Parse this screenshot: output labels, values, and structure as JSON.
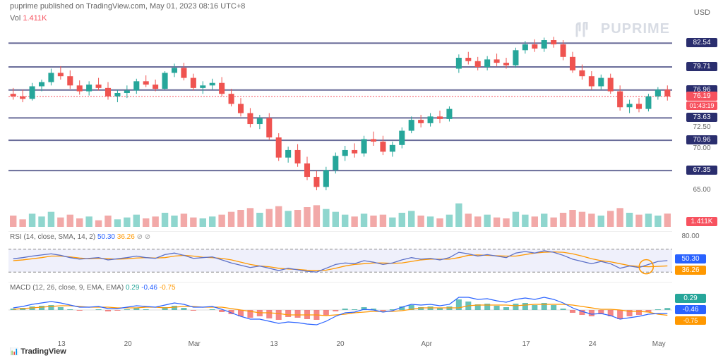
{
  "header": {
    "publisher": "puprime",
    "published_on": "published on TradingView.com,",
    "date": "May 01, 2023 08:16 UTC+8"
  },
  "volume": {
    "label": "Vol",
    "value": "1.411K",
    "color": "#f7525f"
  },
  "watermark": {
    "text": "PUPRIME",
    "color": "#d8dce4"
  },
  "currency": "USD",
  "price_chart": {
    "type": "candlestick",
    "y_min": 64,
    "y_max": 85,
    "horizontal_lines": [
      {
        "value": 82.54,
        "color": "#2a2e6e"
      },
      {
        "value": 79.71,
        "color": "#2a2e6e"
      },
      {
        "value": 76.96,
        "color": "#2a2e6e"
      },
      {
        "value": 73.63,
        "color": "#2a2e6e"
      },
      {
        "value": 70.96,
        "color": "#2a2e6e"
      },
      {
        "value": 67.35,
        "color": "#2a2e6e"
      }
    ],
    "current_price": 76.19,
    "current_price_color": "#f7525f",
    "countdown": "01:43:19",
    "plain_ticks": [
      {
        "value": 72.5
      },
      {
        "value": 70.0
      },
      {
        "value": 65.0
      }
    ],
    "volume_tag": {
      "value": "1.411K",
      "color": "#f7525f"
    },
    "colors": {
      "up": "#26a69a",
      "down": "#ef5350",
      "vol_up": "#8fd6ce",
      "vol_down": "#f2a9a8"
    },
    "candles": [
      {
        "o": 76.5,
        "h": 77.2,
        "l": 75.8,
        "c": 76.2
      },
      {
        "o": 76.2,
        "h": 77.0,
        "l": 75.5,
        "c": 75.9
      },
      {
        "o": 75.9,
        "h": 77.8,
        "l": 75.7,
        "c": 77.4
      },
      {
        "o": 77.4,
        "h": 78.2,
        "l": 76.8,
        "c": 77.9
      },
      {
        "o": 77.9,
        "h": 79.5,
        "l": 77.5,
        "c": 79.0
      },
      {
        "o": 79.0,
        "h": 79.8,
        "l": 78.2,
        "c": 78.6
      },
      {
        "o": 78.6,
        "h": 79.3,
        "l": 77.1,
        "c": 77.5
      },
      {
        "o": 77.5,
        "h": 78.1,
        "l": 76.4,
        "c": 76.8
      },
      {
        "o": 76.8,
        "h": 78.0,
        "l": 76.3,
        "c": 77.6
      },
      {
        "o": 77.6,
        "h": 78.4,
        "l": 76.9,
        "c": 77.2
      },
      {
        "o": 77.2,
        "h": 77.9,
        "l": 75.8,
        "c": 76.2
      },
      {
        "o": 76.2,
        "h": 77.0,
        "l": 75.5,
        "c": 76.6
      },
      {
        "o": 76.6,
        "h": 77.5,
        "l": 76.0,
        "c": 76.9
      },
      {
        "o": 76.9,
        "h": 78.3,
        "l": 76.5,
        "c": 78.0
      },
      {
        "o": 78.0,
        "h": 78.7,
        "l": 77.3,
        "c": 77.6
      },
      {
        "o": 77.6,
        "h": 78.2,
        "l": 76.8,
        "c": 77.1
      },
      {
        "o": 77.1,
        "h": 79.2,
        "l": 77.0,
        "c": 79.0
      },
      {
        "o": 79.0,
        "h": 80.1,
        "l": 78.5,
        "c": 79.6
      },
      {
        "o": 79.6,
        "h": 80.2,
        "l": 78.1,
        "c": 78.4
      },
      {
        "o": 78.4,
        "h": 78.9,
        "l": 76.9,
        "c": 77.2
      },
      {
        "o": 77.2,
        "h": 78.0,
        "l": 76.5,
        "c": 77.5
      },
      {
        "o": 77.5,
        "h": 78.3,
        "l": 77.0,
        "c": 77.8
      },
      {
        "o": 77.8,
        "h": 78.5,
        "l": 76.2,
        "c": 76.5
      },
      {
        "o": 76.5,
        "h": 77.1,
        "l": 75.0,
        "c": 75.3
      },
      {
        "o": 75.3,
        "h": 76.0,
        "l": 73.8,
        "c": 74.2
      },
      {
        "o": 74.2,
        "h": 74.8,
        "l": 72.5,
        "c": 72.9
      },
      {
        "o": 72.9,
        "h": 74.0,
        "l": 72.3,
        "c": 73.6
      },
      {
        "o": 73.6,
        "h": 74.2,
        "l": 71.0,
        "c": 71.3
      },
      {
        "o": 71.3,
        "h": 71.8,
        "l": 68.5,
        "c": 68.9
      },
      {
        "o": 68.9,
        "h": 70.2,
        "l": 68.3,
        "c": 69.8
      },
      {
        "o": 69.8,
        "h": 70.5,
        "l": 67.8,
        "c": 68.2
      },
      {
        "o": 68.2,
        "h": 69.0,
        "l": 66.2,
        "c": 66.6
      },
      {
        "o": 66.6,
        "h": 67.3,
        "l": 65.0,
        "c": 65.4
      },
      {
        "o": 65.4,
        "h": 67.8,
        "l": 65.0,
        "c": 67.4
      },
      {
        "o": 67.4,
        "h": 69.5,
        "l": 67.0,
        "c": 69.1
      },
      {
        "o": 69.1,
        "h": 70.3,
        "l": 68.5,
        "c": 69.8
      },
      {
        "o": 69.8,
        "h": 70.6,
        "l": 68.9,
        "c": 69.4
      },
      {
        "o": 69.4,
        "h": 71.5,
        "l": 69.0,
        "c": 71.1
      },
      {
        "o": 71.1,
        "h": 72.0,
        "l": 70.3,
        "c": 70.8
      },
      {
        "o": 70.8,
        "h": 71.5,
        "l": 69.2,
        "c": 69.6
      },
      {
        "o": 69.6,
        "h": 70.8,
        "l": 69.0,
        "c": 70.4
      },
      {
        "o": 70.4,
        "h": 72.5,
        "l": 70.0,
        "c": 72.1
      },
      {
        "o": 72.1,
        "h": 73.8,
        "l": 71.8,
        "c": 73.4
      },
      {
        "o": 73.4,
        "h": 74.0,
        "l": 72.5,
        "c": 73.0
      },
      {
        "o": 73.0,
        "h": 74.2,
        "l": 72.6,
        "c": 73.8
      },
      {
        "o": 73.8,
        "h": 74.5,
        "l": 73.0,
        "c": 73.5
      },
      {
        "o": 73.5,
        "h": 75.0,
        "l": 73.2,
        "c": 74.7
      },
      {
        "o": 79.5,
        "h": 81.2,
        "l": 79.0,
        "c": 80.8
      },
      {
        "o": 80.8,
        "h": 81.5,
        "l": 80.0,
        "c": 80.4
      },
      {
        "o": 80.4,
        "h": 80.9,
        "l": 79.3,
        "c": 79.7
      },
      {
        "o": 79.7,
        "h": 81.0,
        "l": 79.3,
        "c": 80.6
      },
      {
        "o": 80.6,
        "h": 81.3,
        "l": 79.8,
        "c": 80.2
      },
      {
        "o": 80.2,
        "h": 80.8,
        "l": 79.5,
        "c": 79.9
      },
      {
        "o": 79.9,
        "h": 82.0,
        "l": 79.6,
        "c": 81.7
      },
      {
        "o": 81.7,
        "h": 82.8,
        "l": 81.3,
        "c": 82.4
      },
      {
        "o": 82.4,
        "h": 83.0,
        "l": 81.5,
        "c": 81.9
      },
      {
        "o": 81.9,
        "h": 83.2,
        "l": 81.5,
        "c": 82.9
      },
      {
        "o": 82.9,
        "h": 83.3,
        "l": 82.0,
        "c": 82.4
      },
      {
        "o": 82.4,
        "h": 82.9,
        "l": 80.5,
        "c": 80.9
      },
      {
        "o": 80.9,
        "h": 81.5,
        "l": 79.0,
        "c": 79.3
      },
      {
        "o": 79.3,
        "h": 80.0,
        "l": 78.2,
        "c": 78.6
      },
      {
        "o": 78.6,
        "h": 79.2,
        "l": 77.0,
        "c": 77.4
      },
      {
        "o": 77.4,
        "h": 78.8,
        "l": 77.0,
        "c": 78.4
      },
      {
        "o": 78.4,
        "h": 78.9,
        "l": 76.5,
        "c": 76.8
      },
      {
        "o": 76.8,
        "h": 77.5,
        "l": 74.5,
        "c": 74.9
      },
      {
        "o": 74.9,
        "h": 75.8,
        "l": 74.2,
        "c": 75.3
      },
      {
        "o": 75.3,
        "h": 76.0,
        "l": 74.3,
        "c": 74.7
      },
      {
        "o": 74.7,
        "h": 76.5,
        "l": 74.4,
        "c": 76.2
      },
      {
        "o": 76.2,
        "h": 77.3,
        "l": 75.8,
        "c": 77.0
      },
      {
        "o": 77.0,
        "h": 77.5,
        "l": 75.7,
        "c": 76.19
      }
    ],
    "volumes": [
      1.2,
      0.8,
      1.4,
      1.1,
      1.6,
      1.0,
      1.3,
      0.9,
      1.1,
      0.7,
      1.2,
      0.8,
      1.0,
      1.3,
      0.9,
      1.1,
      1.5,
      1.2,
      1.4,
      1.0,
      0.9,
      1.1,
      1.3,
      1.6,
      1.8,
      2.0,
      1.5,
      1.9,
      2.2,
      1.7,
      1.8,
      2.1,
      2.3,
      1.9,
      1.6,
      1.3,
      1.1,
      1.4,
      1.2,
      1.3,
      1.0,
      1.5,
      1.7,
      1.2,
      1.1,
      0.9,
      1.3,
      2.5,
      1.4,
      1.1,
      1.3,
      1.0,
      0.9,
      1.6,
      1.3,
      1.1,
      1.4,
      1.0,
      1.5,
      1.8,
      1.6,
      1.4,
      1.2,
      1.7,
      2.0,
      1.5,
      1.3,
      1.4,
      1.2,
      1.411
    ],
    "volume_max": 3.0
  },
  "x_axis": {
    "ticks": [
      {
        "pos": 0.08,
        "label": "13"
      },
      {
        "pos": 0.18,
        "label": "20"
      },
      {
        "pos": 0.28,
        "label": "Mar"
      },
      {
        "pos": 0.4,
        "label": "13"
      },
      {
        "pos": 0.5,
        "label": "20"
      },
      {
        "pos": 0.63,
        "label": "Apr"
      },
      {
        "pos": 0.78,
        "label": "17"
      },
      {
        "pos": 0.88,
        "label": "24"
      },
      {
        "pos": 0.98,
        "label": "May"
      }
    ]
  },
  "rsi": {
    "label": "RSI (14, close, SMA, 14, 2)",
    "v1": "50.30",
    "v1_color": "#2962ff",
    "v2": "36.26",
    "v2_color": "#ff9800",
    "upper": 80,
    "lower": 20,
    "min": 0,
    "max": 100,
    "tag_upper": "80.00",
    "line1_color": "#5b6fc7",
    "line2_color": "#ff9800",
    "data1": [
      55,
      58,
      62,
      65,
      68,
      64,
      58,
      54,
      56,
      58,
      52,
      55,
      58,
      62,
      58,
      56,
      66,
      70,
      64,
      56,
      58,
      60,
      52,
      44,
      38,
      32,
      36,
      30,
      24,
      30,
      26,
      22,
      20,
      30,
      40,
      44,
      42,
      50,
      46,
      40,
      44,
      52,
      58,
      54,
      56,
      52,
      58,
      72,
      68,
      62,
      66,
      62,
      58,
      70,
      74,
      70,
      76,
      72,
      64,
      54,
      48,
      42,
      48,
      42,
      30,
      36,
      32,
      40,
      48,
      50.3
    ],
    "data2": [
      50,
      52,
      55,
      58,
      62,
      62,
      60,
      57,
      55,
      56,
      55,
      54,
      55,
      57,
      58,
      57,
      58,
      62,
      64,
      62,
      59,
      58,
      56,
      52,
      46,
      40,
      36,
      34,
      30,
      28,
      27,
      25,
      24,
      25,
      30,
      36,
      40,
      42,
      44,
      44,
      43,
      44,
      48,
      52,
      54,
      54,
      54,
      58,
      64,
      65,
      64,
      63,
      62,
      62,
      66,
      70,
      72,
      73,
      72,
      68,
      62,
      55,
      50,
      47,
      42,
      37,
      35,
      34,
      35,
      36.26
    ]
  },
  "macd": {
    "label": "MACD (12, 26, close, 9, EMA, EMA)",
    "v1": "0.29",
    "v1_color": "#26a69a",
    "v2": "-0.46",
    "v2_color": "#2962ff",
    "v3": "-0.75",
    "v3_color": "#ff9800",
    "min": -2.5,
    "max": 2.5,
    "hist_color_pos": "#26a69a",
    "hist_color_neg": "#ef5350",
    "line1_color": "#2962ff",
    "line2_color": "#ff9800",
    "hist": [
      0.2,
      0.3,
      0.5,
      0.6,
      0.7,
      0.4,
      0.1,
      -0.1,
      0.0,
      0.1,
      -0.2,
      -0.1,
      0.1,
      0.3,
      0.1,
      0.0,
      0.4,
      0.6,
      0.3,
      -0.1,
      0.0,
      0.1,
      -0.3,
      -0.6,
      -0.9,
      -1.1,
      -0.9,
      -1.2,
      -1.4,
      -1.0,
      -1.1,
      -1.3,
      -1.4,
      -0.8,
      -0.2,
      0.2,
      0.1,
      0.4,
      0.2,
      -0.1,
      0.1,
      0.5,
      0.7,
      0.4,
      0.5,
      0.3,
      0.5,
      1.5,
      1.2,
      0.8,
      0.9,
      0.6,
      0.4,
      0.9,
      1.0,
      0.7,
      1.0,
      0.7,
      0.2,
      -0.4,
      -0.7,
      -0.9,
      -0.6,
      -0.9,
      -1.3,
      -0.9,
      -0.7,
      -0.3,
      0.1,
      0.29
    ],
    "line1": [
      0.3,
      0.5,
      0.8,
      1.0,
      1.2,
      1.0,
      0.7,
      0.4,
      0.4,
      0.5,
      0.2,
      0.2,
      0.4,
      0.6,
      0.5,
      0.4,
      0.7,
      1.0,
      0.8,
      0.4,
      0.4,
      0.5,
      0.1,
      -0.4,
      -0.9,
      -1.3,
      -1.3,
      -1.6,
      -1.9,
      -1.7,
      -1.8,
      -2.0,
      -2.1,
      -1.6,
      -0.9,
      -0.4,
      -0.3,
      0.1,
      0.0,
      -0.3,
      -0.1,
      0.4,
      0.8,
      0.7,
      0.8,
      0.6,
      0.8,
      1.8,
      1.8,
      1.5,
      1.6,
      1.3,
      1.1,
      1.5,
      1.7,
      1.5,
      1.8,
      1.5,
      1.0,
      0.3,
      -0.2,
      -0.6,
      -0.5,
      -0.8,
      -1.3,
      -1.1,
      -0.9,
      -0.6,
      -0.5,
      -0.46
    ],
    "line2": [
      0.1,
      0.2,
      0.3,
      0.4,
      0.5,
      0.6,
      0.6,
      0.5,
      0.4,
      0.4,
      0.4,
      0.3,
      0.3,
      0.3,
      0.4,
      0.4,
      0.3,
      0.4,
      0.5,
      0.5,
      0.4,
      0.4,
      0.4,
      0.2,
      0.0,
      -0.2,
      -0.4,
      -0.4,
      -0.5,
      -0.7,
      -0.7,
      -0.7,
      -0.7,
      -0.8,
      -0.7,
      -0.6,
      -0.4,
      -0.3,
      -0.2,
      -0.2,
      -0.2,
      -0.1,
      0.1,
      0.3,
      0.3,
      0.3,
      0.3,
      0.3,
      0.6,
      0.7,
      0.7,
      0.7,
      0.7,
      0.6,
      0.7,
      0.8,
      0.8,
      0.8,
      0.8,
      0.7,
      0.5,
      0.3,
      0.1,
      0.1,
      0.0,
      -0.2,
      -0.2,
      -0.3,
      -0.6,
      -0.75
    ]
  },
  "footer": {
    "logo": "TradingView"
  }
}
